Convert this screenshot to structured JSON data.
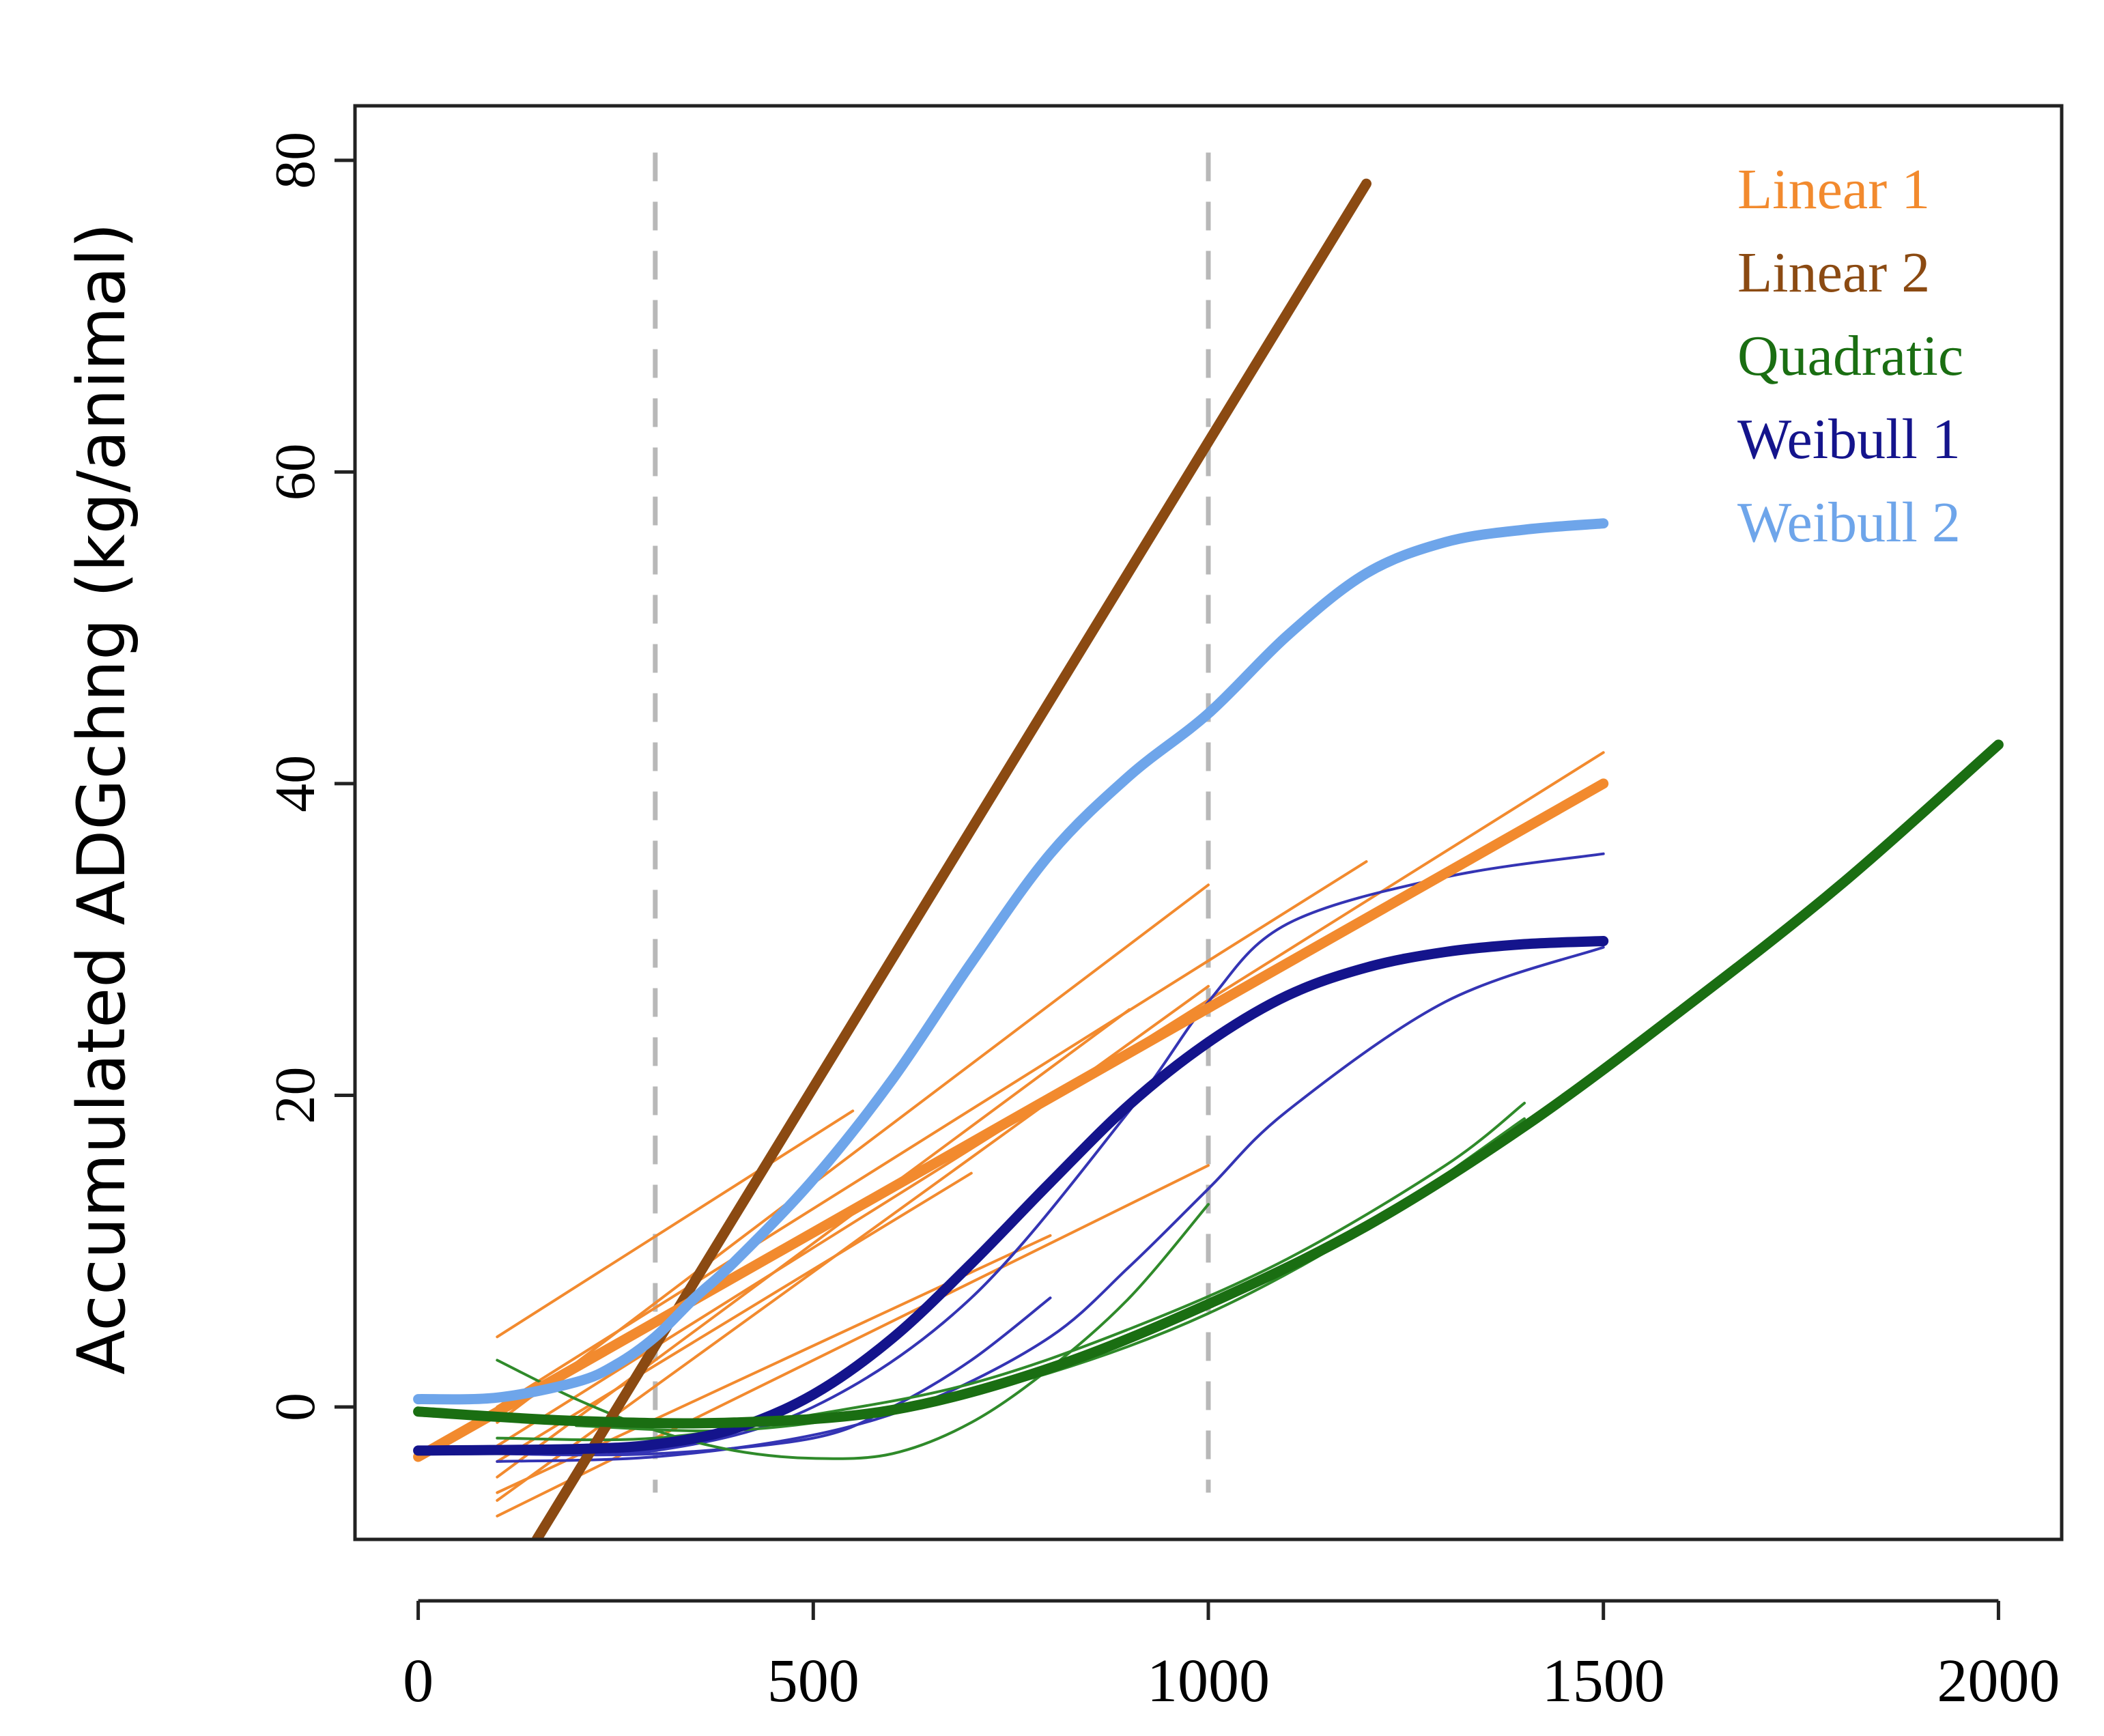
{
  "chart_data": {
    "type": "line",
    "title": "",
    "xlabel": "",
    "ylabel": "Accumulated ADGchng (kg/animal)",
    "xlim": [
      -80,
      2080
    ],
    "ylim": [
      -8.5,
      83.5
    ],
    "x_ticks": [
      0,
      500,
      1000,
      1500,
      2000
    ],
    "x_tick_labels": [
      "0",
      "500",
      "1000",
      "1500",
      "2000"
    ],
    "y_ticks": [
      0,
      20,
      40,
      60,
      80
    ],
    "y_tick_labels": [
      "0",
      "20",
      "40",
      "60",
      "80"
    ],
    "vlines": [
      {
        "x": 300,
        "style": "dashed",
        "color": "#b8b8b8"
      },
      {
        "x": 1000,
        "style": "dashed",
        "color": "#b8b8b8"
      }
    ],
    "legend": {
      "position": "top-right",
      "entries": [
        {
          "label": "Linear 1",
          "color": "#f28a2e"
        },
        {
          "label": "Linear 2",
          "color": "#8b4a12"
        },
        {
          "label": "Quadratic",
          "color": "#1a6e12"
        },
        {
          "label": "Weibull 1",
          "color": "#14148c"
        },
        {
          "label": "Weibull 2",
          "color": "#6ea5ea"
        }
      ]
    },
    "series": [
      {
        "name": "Linear 1 (thin 1)",
        "group": "Linear 1",
        "weight": "thin",
        "color": "#f28a2e",
        "x": [
          100,
          550
        ],
        "y": [
          4.5,
          19
        ]
      },
      {
        "name": "Linear 1 (thin 2)",
        "group": "Linear 1",
        "weight": "thin",
        "color": "#f28a2e",
        "x": [
          100,
          1000
        ],
        "y": [
          -1,
          33.5
        ]
      },
      {
        "name": "Linear 1 (thin 3)",
        "group": "Linear 1",
        "weight": "thin",
        "color": "#f28a2e",
        "x": [
          100,
          1200
        ],
        "y": [
          0,
          35
        ]
      },
      {
        "name": "Linear 1 (thin 4)",
        "group": "Linear 1",
        "weight": "thin",
        "color": "#f28a2e",
        "x": [
          100,
          1500
        ],
        "y": [
          -2.5,
          42
        ]
      },
      {
        "name": "Linear 1 (thin 5)",
        "group": "Linear 1",
        "weight": "thin",
        "color": "#f28a2e",
        "x": [
          100,
          900
        ],
        "y": [
          -4.5,
          25.5
        ]
      },
      {
        "name": "Linear 1 (thin 6)",
        "group": "Linear 1",
        "weight": "thin",
        "color": "#f28a2e",
        "x": [
          100,
          1000
        ],
        "y": [
          -6,
          27
        ]
      },
      {
        "name": "Linear 1 (thin 7)",
        "group": "Linear 1",
        "weight": "thin",
        "color": "#f28a2e",
        "x": [
          100,
          1000
        ],
        "y": [
          -7,
          15.5
        ]
      },
      {
        "name": "Linear 1 (thin 8)",
        "group": "Linear 1",
        "weight": "thin",
        "color": "#f28a2e",
        "x": [
          100,
          800
        ],
        "y": [
          -5.5,
          11
        ]
      },
      {
        "name": "Linear 1 (thin 9)",
        "group": "Linear 1",
        "weight": "thin",
        "color": "#f28a2e",
        "x": [
          100,
          700
        ],
        "y": [
          -3.5,
          15
        ]
      },
      {
        "name": "Weibull 1 (thin 1)",
        "group": "Weibull 1",
        "weight": "thin",
        "color": "#3434b4",
        "x": [
          100,
          300,
          500,
          700,
          900,
          1000,
          1100,
          1300,
          1500
        ],
        "y": [
          -3,
          -2.8,
          0,
          7,
          19,
          26,
          31,
          34,
          35.5
        ]
      },
      {
        "name": "Weibull 1 (thin 2)",
        "group": "Weibull 1",
        "weight": "thin",
        "color": "#3434b4",
        "x": [
          100,
          300,
          500,
          650,
          800,
          900,
          1000,
          1100,
          1300,
          1500
        ],
        "y": [
          -3.5,
          -3.2,
          -1.8,
          0.5,
          4.5,
          9,
          14,
          19,
          26,
          29.5
        ]
      },
      {
        "name": "Weibull 1 (thin 3)",
        "group": "Weibull 1",
        "weight": "thin",
        "color": "#3434b4",
        "x": [
          100,
          300,
          500,
          600,
          700,
          800
        ],
        "y": [
          -3,
          -3,
          -2,
          0,
          3,
          7
        ]
      },
      {
        "name": "Quadratic (thin 1)",
        "group": "Quadratic",
        "weight": "thin",
        "color": "#2f8a2a",
        "x": [
          100,
          200,
          300,
          400,
          500,
          600,
          700,
          800,
          900,
          1000
        ],
        "y": [
          3,
          0.5,
          -1.5,
          -2.8,
          -3.3,
          -3,
          -1,
          2.5,
          7,
          13
        ]
      },
      {
        "name": "Quadratic (thin 2)",
        "group": "Quadratic",
        "weight": "thin",
        "color": "#2f8a2a",
        "x": [
          100,
          300,
          500,
          700,
          900,
          1100,
          1300,
          1400
        ],
        "y": [
          -2,
          -2,
          -0.5,
          1.5,
          5,
          9.5,
          15.5,
          19.5
        ]
      },
      {
        "name": "Quadratic (thin 3)",
        "group": "Quadratic",
        "weight": "thin",
        "color": "#2f8a2a",
        "x": [
          200,
          400,
          600,
          800,
          1000,
          1200,
          1400
        ],
        "y": [
          -1.2,
          -1.5,
          -0.2,
          2.2,
          6,
          11.5,
          18.5
        ]
      },
      {
        "name": "Linear 2",
        "group": "Linear 2",
        "weight": "thick",
        "color": "#8b4a12",
        "x": [
          150,
          1200
        ],
        "y": [
          -8.5,
          78.5
        ]
      },
      {
        "name": "Linear 1",
        "group": "Linear 1",
        "weight": "thick",
        "color": "#f28a2e",
        "x": [
          0,
          1500
        ],
        "y": [
          -3.2,
          40
        ]
      },
      {
        "name": "Weibull 1",
        "group": "Weibull 1",
        "weight": "thick",
        "color": "#14148c",
        "x": [
          0,
          200,
          300,
          400,
          500,
          600,
          700,
          800,
          900,
          1000,
          1100,
          1200,
          1300,
          1400,
          1500
        ],
        "y": [
          -2.8,
          -2.7,
          -2.4,
          -1.4,
          0.8,
          4.4,
          9.2,
          14.4,
          19.4,
          23.4,
          26.4,
          28.2,
          29.2,
          29.7,
          29.9
        ]
      },
      {
        "name": "Weibull 2",
        "group": "Weibull 2",
        "weight": "thick",
        "color": "#6ea5ea",
        "x": [
          0,
          100,
          200,
          250,
          300,
          350,
          400,
          500,
          600,
          700,
          800,
          900,
          1000,
          1100,
          1200,
          1300,
          1400,
          1500
        ],
        "y": [
          0.5,
          0.6,
          1.6,
          2.7,
          4.5,
          7,
          9.3,
          14.6,
          21,
          28.5,
          35.5,
          40.5,
          44.5,
          49.5,
          53.5,
          55.5,
          56.3,
          56.7
        ]
      },
      {
        "name": "Quadratic",
        "group": "Quadratic",
        "weight": "thick",
        "color": "#1a6e12",
        "x": [
          0,
          200,
          400,
          600,
          800,
          1000,
          1200,
          1400,
          1600,
          1800,
          2000
        ],
        "y": [
          -0.3,
          -0.9,
          -1.0,
          -0.2,
          2.5,
          6.6,
          11.6,
          18.0,
          25.5,
          33.5,
          42.5
        ]
      }
    ]
  }
}
